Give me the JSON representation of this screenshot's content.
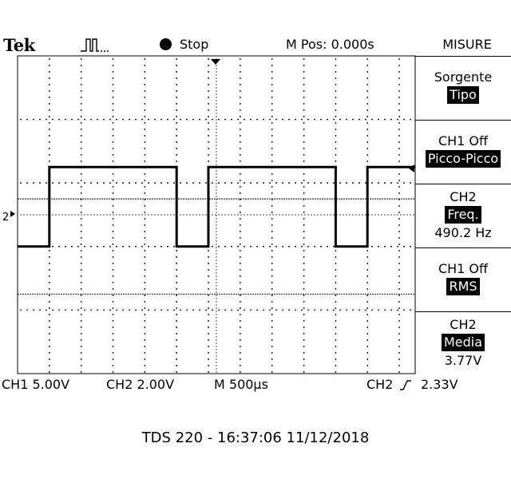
{
  "header": {
    "brand": "Tek",
    "acquisition_icon": "trigger-pulse-icon",
    "state": "Stop",
    "horizontal_position": "M Pos: 0.000s",
    "menu_title": "MISURE"
  },
  "menu": [
    {
      "line1": "Sorgente",
      "highlight": "Tipo",
      "value": ""
    },
    {
      "line1": "CH1 Off",
      "highlight": "Picco-Picco",
      "value": ""
    },
    {
      "line1": "CH2",
      "highlight": "Freq.",
      "value": "490.2 Hz"
    },
    {
      "line1": "CH1 Off",
      "highlight": "RMS",
      "value": ""
    },
    {
      "line1": "CH2",
      "highlight": "Media",
      "value": "3.77V"
    }
  ],
  "scale": {
    "ch1": "CH1 5.00V",
    "ch2": "CH2 2.00V",
    "time": "M 500µs",
    "trigger_source": "CH2",
    "trigger_icon": "rising-edge-icon",
    "trigger_level": "2.33V"
  },
  "markers": {
    "ch2_ground": "2"
  },
  "footer": "TDS 220 - 16:37:06    11/12/2018",
  "chart_data": {
    "type": "line",
    "series": [
      {
        "x": [
          0,
          2,
          2,
          10,
          10,
          12,
          12,
          20,
          20,
          22,
          22,
          25
        ],
        "y": [
          0,
          0,
          2.5,
          2.5,
          0,
          0,
          2.5,
          2.5,
          0,
          0,
          2.5,
          2.5
        ]
      }
    ],
    "xlim": [
      0,
      25
    ],
    "ylim": [
      -4,
      6
    ],
    "grid": true
  }
}
